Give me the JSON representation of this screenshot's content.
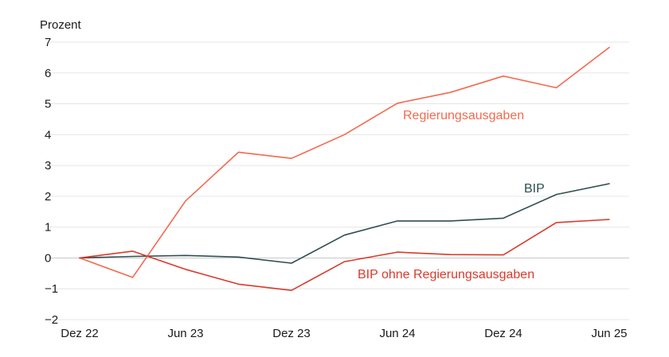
{
  "chart_data": {
    "type": "line",
    "ylabel": "Prozent",
    "ylim": [
      -2,
      7
    ],
    "yticks": [
      -2,
      -1,
      0,
      1,
      2,
      3,
      4,
      5,
      6,
      7
    ],
    "ytick_labels": [
      "−2",
      "−1",
      "0",
      "1",
      "2",
      "3",
      "4",
      "5",
      "6",
      "7"
    ],
    "x": [
      "Dez 22",
      "Mär 23",
      "Jun 23",
      "Sep 23",
      "Dez 23",
      "Mär 24",
      "Jun 24",
      "Sep 24",
      "Dez 24",
      "Mär 25",
      "Jun 25"
    ],
    "xtick_labels": [
      "Dez 22",
      "Jun 23",
      "Dez 23",
      "Jun 24",
      "Dez 24",
      "Jun 25"
    ],
    "grid": true,
    "series": [
      {
        "name": "Regierungsausgaben",
        "color": "#f26a4f",
        "values": [
          0,
          -0.63,
          1.85,
          3.43,
          3.23,
          4.0,
          5.02,
          5.37,
          5.9,
          5.52,
          6.83
        ]
      },
      {
        "name": "BIP",
        "color": "#2f4f4f",
        "values": [
          0,
          0.05,
          0.08,
          0.03,
          -0.17,
          0.74,
          1.2,
          1.2,
          1.29,
          2.06,
          2.41
        ]
      },
      {
        "name": "BIP ohne Regierungsausgaben",
        "color": "#d93a2b",
        "values": [
          0,
          0.22,
          -0.37,
          -0.85,
          -1.05,
          -0.12,
          0.19,
          0.11,
          0.1,
          1.15,
          1.25
        ]
      }
    ]
  }
}
